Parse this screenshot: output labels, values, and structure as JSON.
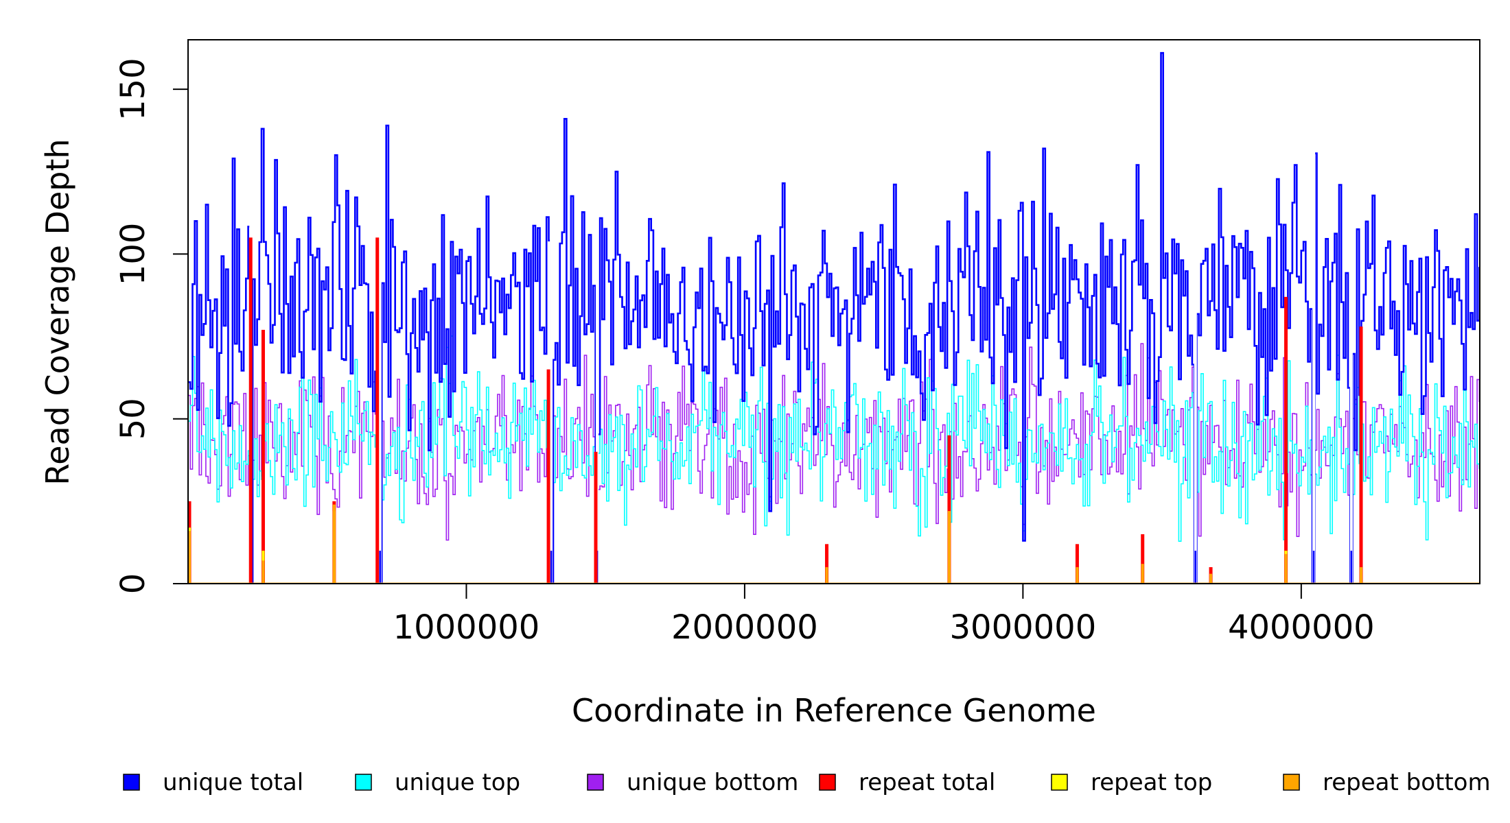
{
  "chart_data": {
    "type": "line",
    "xlabel": "Coordinate in Reference Genome",
    "ylabel": "Read Coverage Depth",
    "xlim": [
      1,
      4641652
    ],
    "ylim": [
      0,
      165
    ],
    "x_ticks": [
      1000000,
      2000000,
      3000000,
      4000000
    ],
    "x_tick_labels": [
      "1000000",
      "2000000",
      "3000000",
      "4000000"
    ],
    "y_ticks": [
      0,
      50,
      100,
      150
    ],
    "y_tick_labels": [
      "0",
      "50",
      "100",
      "150"
    ],
    "grid": false,
    "legend_position": "bottom",
    "colors": {
      "unique_total": "#0000ff",
      "unique_top": "#00ffff",
      "unique_bottom": "#a020f0",
      "repeat_total": "#ff0000",
      "repeat_top": "#ffff00",
      "repeat_bottom": "#ffa500"
    },
    "bin_width": 8000,
    "gaps": [
      {
        "x": 220000,
        "width": 10000
      },
      {
        "x": 685000,
        "width": 10000
      },
      {
        "x": 1300000,
        "width": 10000
      },
      {
        "x": 1465000,
        "width": 10000
      },
      {
        "x": 3615000,
        "width": 10000
      },
      {
        "x": 4040000,
        "width": 10000
      },
      {
        "x": 4175000,
        "width": 10000
      }
    ],
    "series": [
      {
        "name": "unique total",
        "key": "unique_total",
        "approx_mean": 85,
        "approx_sd": 17,
        "peaks": [
          {
            "x": 30000,
            "y": 110
          },
          {
            "x": 70000,
            "y": 115
          },
          {
            "x": 165000,
            "y": 129
          },
          {
            "x": 270000,
            "y": 138
          },
          {
            "x": 535000,
            "y": 130
          },
          {
            "x": 720000,
            "y": 139
          },
          {
            "x": 1310000,
            "y": 73
          },
          {
            "x": 1360000,
            "y": 141
          },
          {
            "x": 1540000,
            "y": 125
          },
          {
            "x": 3080000,
            "y": 132
          },
          {
            "x": 3410000,
            "y": 127
          },
          {
            "x": 3500000,
            "y": 161
          },
          {
            "x": 3980000,
            "y": 127
          },
          {
            "x": 4140000,
            "y": 121
          }
        ],
        "dips": [
          {
            "x": 225000,
            "y": 0
          },
          {
            "x": 690000,
            "y": 0
          },
          {
            "x": 1305000,
            "y": 0
          },
          {
            "x": 1470000,
            "y": 0
          },
          {
            "x": 3620000,
            "y": 0
          },
          {
            "x": 4045000,
            "y": 0
          },
          {
            "x": 4180000,
            "y": 0
          },
          {
            "x": 2095000,
            "y": 22
          },
          {
            "x": 3005000,
            "y": 13
          }
        ]
      },
      {
        "name": "unique top",
        "key": "unique_top",
        "approx_mean": 43,
        "approx_sd": 11
      },
      {
        "name": "unique bottom",
        "key": "unique_bottom",
        "approx_mean": 43,
        "approx_sd": 11
      },
      {
        "name": "repeat total",
        "key": "repeat_total",
        "spikes": [
          {
            "x": 5000,
            "y": 25
          },
          {
            "x": 225000,
            "y": 105
          },
          {
            "x": 270000,
            "y": 77
          },
          {
            "x": 525000,
            "y": 25
          },
          {
            "x": 680000,
            "y": 105
          },
          {
            "x": 1295000,
            "y": 65
          },
          {
            "x": 1465000,
            "y": 40
          },
          {
            "x": 2295000,
            "y": 12
          },
          {
            "x": 2735000,
            "y": 45
          },
          {
            "x": 3195000,
            "y": 12
          },
          {
            "x": 3430000,
            "y": 15
          },
          {
            "x": 3675000,
            "y": 5
          },
          {
            "x": 3945000,
            "y": 87
          },
          {
            "x": 4215000,
            "y": 78
          }
        ]
      },
      {
        "name": "repeat top",
        "key": "repeat_top",
        "spikes": [
          {
            "x": 5000,
            "y": 17
          },
          {
            "x": 270000,
            "y": 10
          },
          {
            "x": 525000,
            "y": 22
          },
          {
            "x": 2735000,
            "y": 22
          },
          {
            "x": 3945000,
            "y": 10
          }
        ]
      },
      {
        "name": "repeat bottom",
        "key": "repeat_bottom",
        "spikes": [
          {
            "x": 5000,
            "y": 16
          },
          {
            "x": 270000,
            "y": 7
          },
          {
            "x": 525000,
            "y": 24
          },
          {
            "x": 2295000,
            "y": 5
          },
          {
            "x": 2735000,
            "y": 22
          },
          {
            "x": 3195000,
            "y": 5
          },
          {
            "x": 3430000,
            "y": 6
          },
          {
            "x": 3675000,
            "y": 3
          },
          {
            "x": 3945000,
            "y": 9
          },
          {
            "x": 4215000,
            "y": 5
          }
        ]
      }
    ]
  }
}
